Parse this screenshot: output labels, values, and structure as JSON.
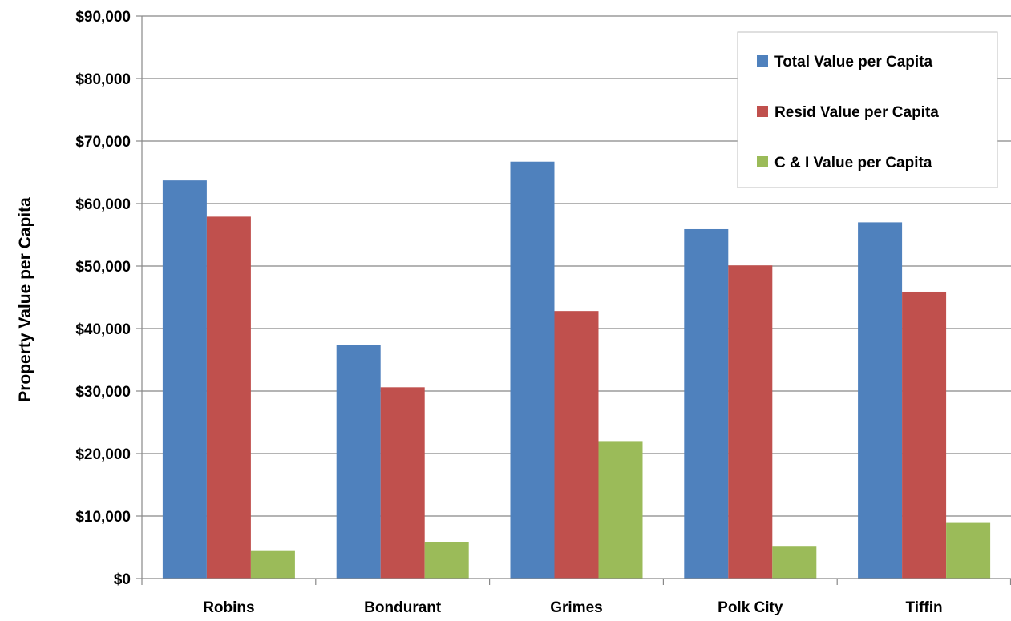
{
  "chart_data": {
    "type": "bar",
    "title": "",
    "xlabel": "",
    "ylabel": "Property Value per Capita",
    "ylim": [
      0,
      90000
    ],
    "ytick_step": 10000,
    "ytick_labels": [
      "$0",
      "$10,000",
      "$20,000",
      "$30,000",
      "$40,000",
      "$50,000",
      "$60,000",
      "$70,000",
      "$80,000",
      "$90,000"
    ],
    "grid": true,
    "legend_position": "top-right",
    "categories": [
      "Robins",
      "Bondurant",
      "Grimes",
      "Polk City",
      "Tiffin"
    ],
    "series": [
      {
        "name": "Total Value per Capita",
        "color": "#4F81BD",
        "values": [
          63700,
          37400,
          66700,
          55900,
          57000
        ]
      },
      {
        "name": "Resid Value per Capita",
        "color": "#C0504D",
        "values": [
          57900,
          30600,
          42800,
          50100,
          45900
        ]
      },
      {
        "name": "C & I Value per Capita",
        "color": "#9BBB59",
        "values": [
          4400,
          5800,
          22000,
          5100,
          8900
        ]
      }
    ]
  }
}
